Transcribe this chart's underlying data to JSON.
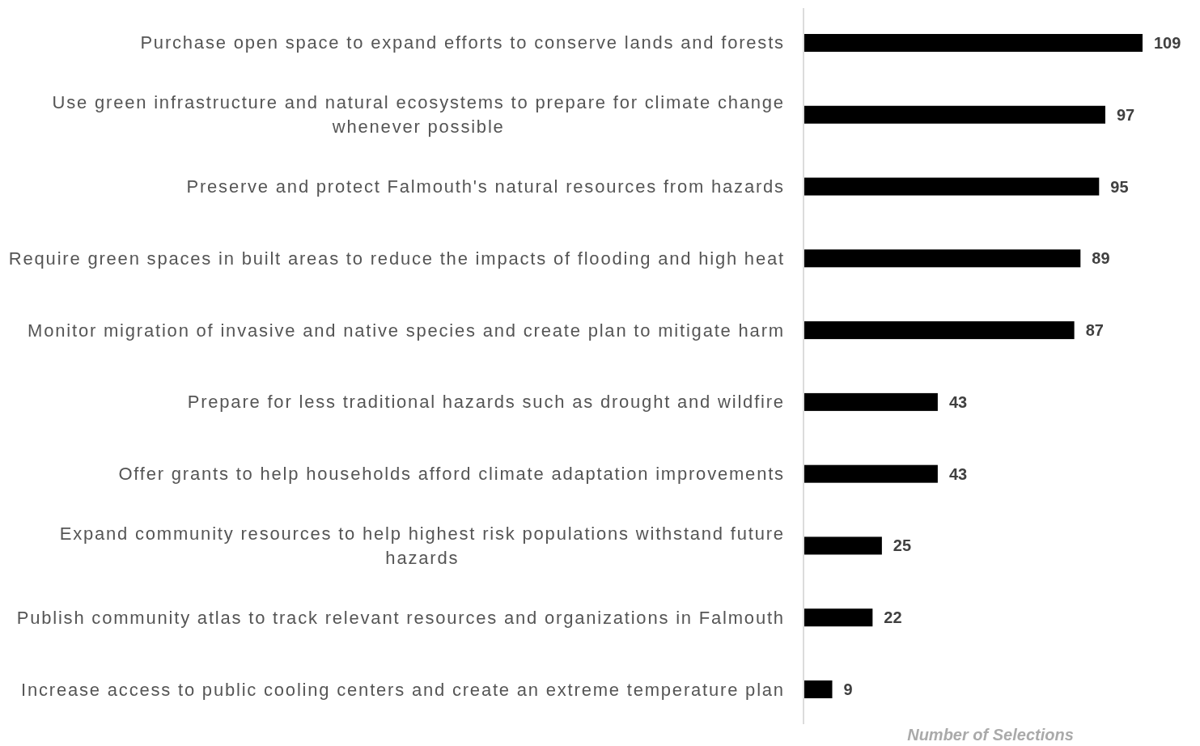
{
  "chart_data": {
    "type": "bar",
    "orientation": "horizontal",
    "categories": [
      "Purchase open space to expand efforts to conserve lands and forests",
      "Use green infrastructure and natural ecosystems to prepare for climate change whenever possible",
      "Preserve and protect Falmouth's natural resources from hazards",
      "Require green spaces in built areas to reduce the impacts of flooding and high heat",
      "Monitor migration of invasive and native species and create plan to mitigate harm",
      "Prepare for less traditional hazards such as drought and wildfire",
      "Offer grants to help households afford climate adaptation improvements",
      "Expand community resources to help highest risk populations withstand future hazards",
      "Publish community atlas to track relevant resources and organizations in Falmouth",
      "Increase access to public cooling centers and create an extreme temperature plan"
    ],
    "values": [
      109,
      97,
      95,
      89,
      87,
      43,
      43,
      25,
      22,
      9
    ],
    "color": "#000000",
    "xlabel": "Number of Selections",
    "data_labels": true,
    "tick_labels": "y"
  }
}
